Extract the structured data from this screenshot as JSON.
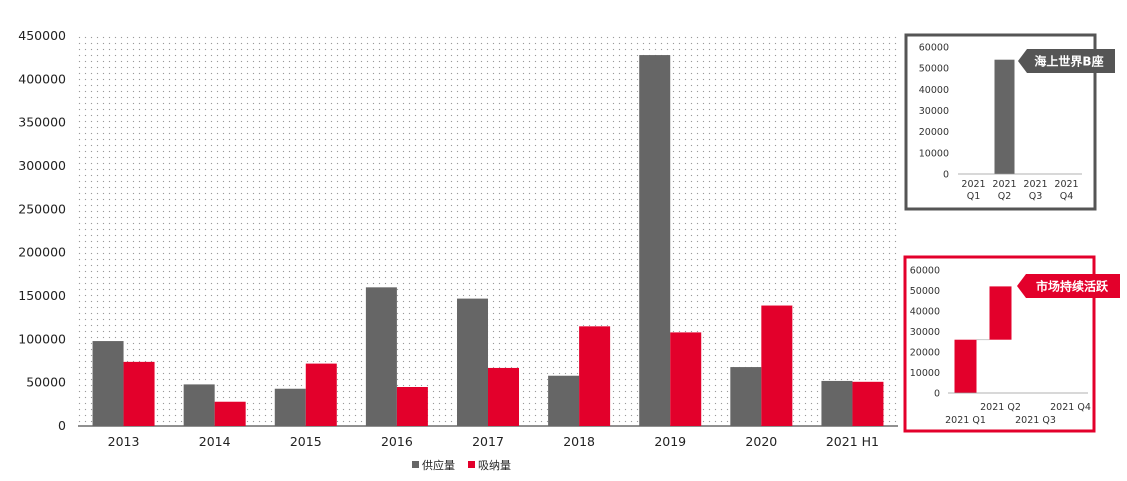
{
  "colors": {
    "supply": "#666666",
    "absorption": "#e3002b",
    "inset1_border": "#555555",
    "inset2_border": "#e3002b",
    "callout1_bg": "#555555",
    "callout2_bg": "#e3002b",
    "axis": "#222222",
    "dots": "#9a9a9a"
  },
  "chart_data": [
    {
      "type": "bar",
      "categories": [
        "2013",
        "2014",
        "2015",
        "2016",
        "2017",
        "2018",
        "2019",
        "2020",
        "2021 H1"
      ],
      "series": [
        {
          "name": "供应量",
          "values": [
            98000,
            48000,
            43000,
            160000,
            147000,
            58000,
            428000,
            68000,
            52000
          ]
        },
        {
          "name": "吸纳量",
          "values": [
            74000,
            28000,
            72000,
            45000,
            67000,
            115000,
            108000,
            139000,
            51000
          ]
        }
      ],
      "ylim": [
        0,
        450000
      ],
      "yticks": [
        0,
        50000,
        100000,
        150000,
        200000,
        250000,
        300000,
        350000,
        400000,
        450000
      ],
      "legend": "bottom",
      "grid": false
    },
    {
      "type": "bar",
      "callout": "海上世界B座",
      "categories": [
        [
          "2021",
          "Q1"
        ],
        [
          "2021",
          "Q2"
        ],
        [
          "2021",
          "Q3"
        ],
        [
          "2021",
          "Q4"
        ]
      ],
      "values": [
        0,
        54000,
        0,
        0
      ],
      "ylim": [
        0,
        60000
      ],
      "yticks": [
        0,
        10000,
        20000,
        30000,
        40000,
        50000,
        60000
      ]
    },
    {
      "type": "bar",
      "subtype": "waterfall",
      "callout": "市场持续活跃",
      "categories": [
        "2021 Q1",
        "2021 Q2",
        "2021 Q3",
        "2021 Q4"
      ],
      "ranges": [
        [
          0,
          26000
        ],
        [
          26000,
          52000
        ],
        null,
        null
      ],
      "ylim": [
        0,
        60000
      ],
      "yticks": [
        0,
        10000,
        20000,
        30000,
        40000,
        50000,
        60000
      ]
    }
  ]
}
